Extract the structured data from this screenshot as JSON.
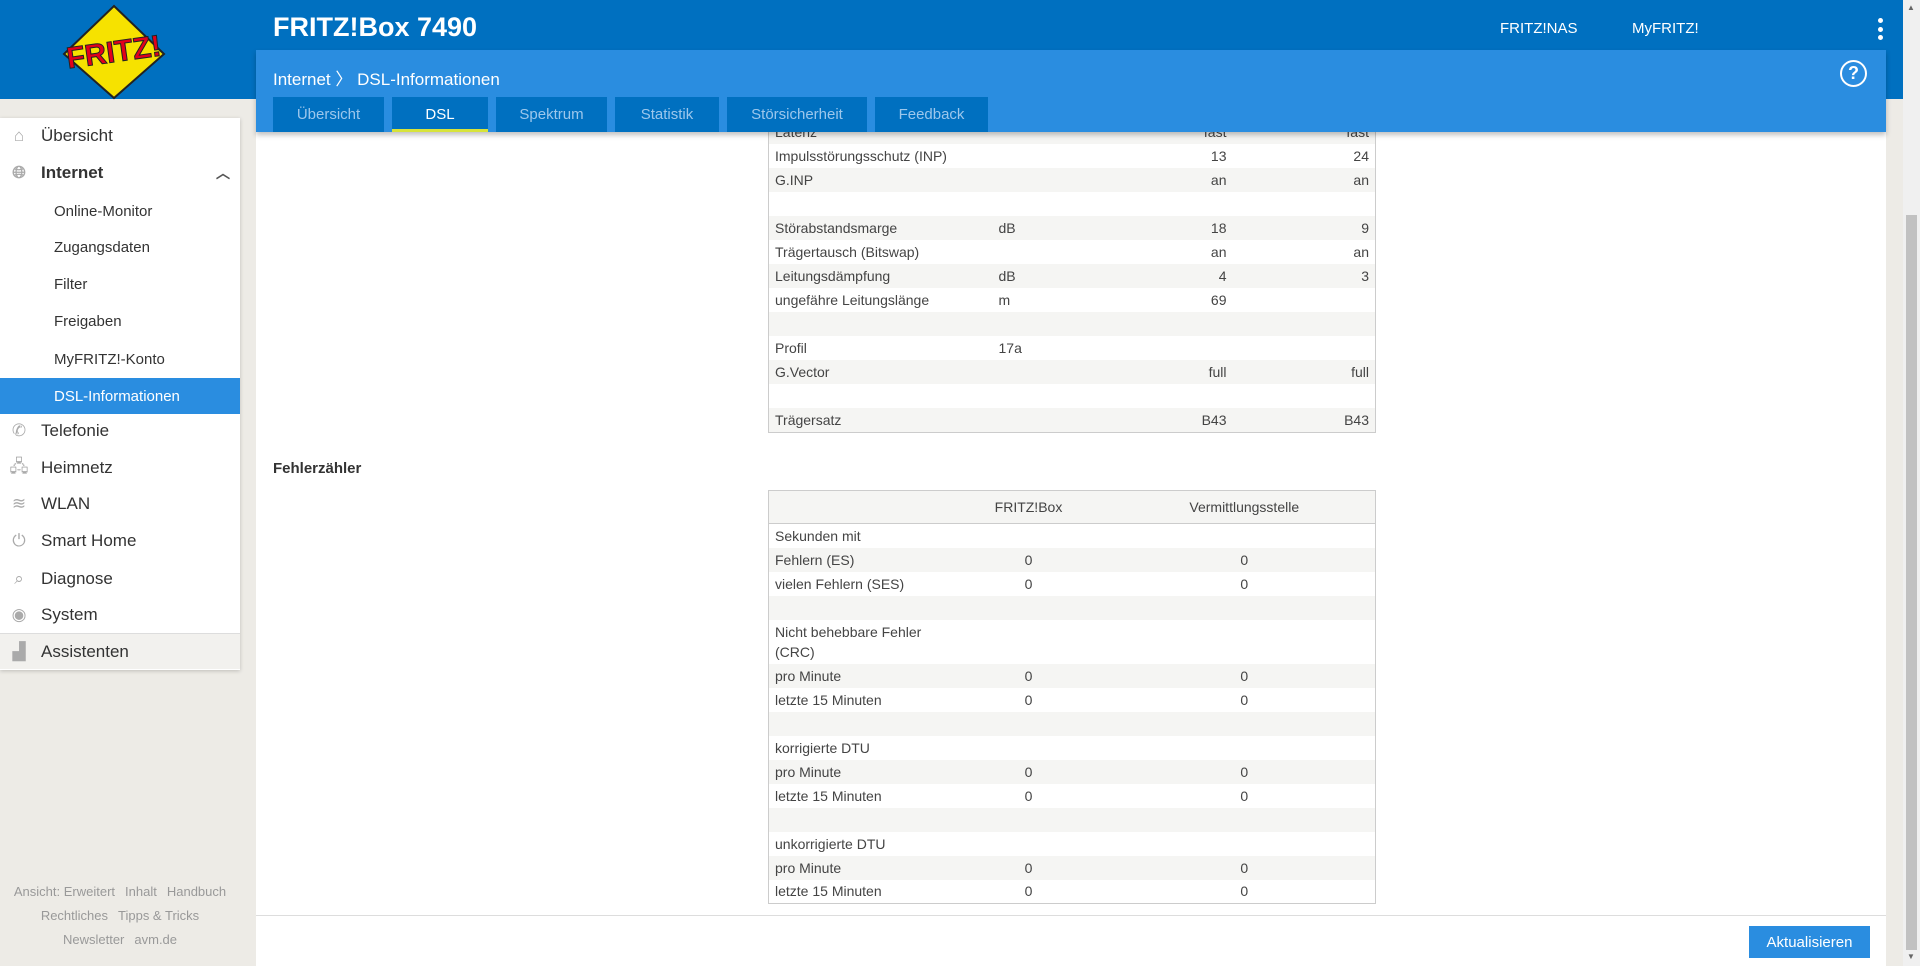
{
  "header": {
    "title": "FRITZ!Box 7490",
    "links": [
      "FRITZ!NAS",
      "MyFRITZ!"
    ],
    "logo_text": "FRITZ!"
  },
  "breadcrumb": {
    "parent": "Internet",
    "sep": "〉",
    "current": "DSL-Informationen"
  },
  "help": "?",
  "tabs": [
    {
      "label": "Übersicht"
    },
    {
      "label": "DSL"
    },
    {
      "label": "Spektrum"
    },
    {
      "label": "Statistik"
    },
    {
      "label": "Störsicherheit"
    },
    {
      "label": "Feedback"
    }
  ],
  "sidebar": {
    "items": [
      "Übersicht",
      "Internet",
      "Online-Monitor",
      "Zugangsdaten",
      "Filter",
      "Freigaben",
      "MyFRITZ!-Konto",
      "DSL-Informationen",
      "Telefonie",
      "Heimnetz",
      "WLAN",
      "Smart Home",
      "Diagnose",
      "System",
      "Assistenten"
    ],
    "footer": [
      "Ansicht: Erweitert",
      "Inhalt",
      "Handbuch",
      "Rechtliches",
      "Tipps & Tricks",
      "Newsletter",
      "avm.de"
    ]
  },
  "dsl_table": [
    [
      "Latenz",
      "",
      "fast",
      "fast"
    ],
    [
      "Impulsstörungsschutz (INP)",
      "",
      "13",
      "24"
    ],
    [
      "G.INP",
      "",
      "an",
      "an"
    ],
    [
      "",
      "",
      "",
      ""
    ],
    [
      "Störabstandsmarge",
      "dB",
      "18",
      "9"
    ],
    [
      "Trägertausch (Bitswap)",
      "",
      "an",
      "an"
    ],
    [
      "Leitungsdämpfung",
      "dB",
      "4",
      "3"
    ],
    [
      "ungefähre Leitungslänge",
      "m",
      "69",
      ""
    ],
    [
      "",
      "",
      "",
      ""
    ],
    [
      "Profil",
      "17a",
      "",
      ""
    ],
    [
      "G.Vector",
      "",
      "full",
      "full"
    ],
    [
      "",
      "",
      "",
      ""
    ],
    [
      "Trägersatz",
      "",
      "B43",
      "B43"
    ]
  ],
  "errors": {
    "heading": "Fehlerzähler",
    "columns": [
      "",
      "FRITZ!Box",
      "Vermittlungsstelle"
    ],
    "rows": [
      [
        "Sekunden mit",
        "",
        ""
      ],
      [
        "Fehlern (ES)",
        "0",
        "0"
      ],
      [
        "vielen Fehlern (SES)",
        "0",
        "0"
      ],
      [
        "",
        "",
        ""
      ],
      [
        "Nicht behebbare Fehler (CRC)",
        "",
        ""
      ],
      [
        "pro Minute",
        "0",
        "0"
      ],
      [
        "letzte 15 Minuten",
        "0",
        "0"
      ],
      [
        "",
        "",
        ""
      ],
      [
        "korrigierte DTU",
        "",
        ""
      ],
      [
        "pro Minute",
        "0",
        "0"
      ],
      [
        "letzte 15 Minuten",
        "0",
        "0"
      ],
      [
        "",
        "",
        ""
      ],
      [
        "unkorrigierte DTU",
        "",
        ""
      ],
      [
        "pro Minute",
        "0",
        "0"
      ],
      [
        "letzte 15 Minuten",
        "0",
        "0"
      ]
    ]
  },
  "buttons": {
    "refresh": "Aktualisieren"
  }
}
